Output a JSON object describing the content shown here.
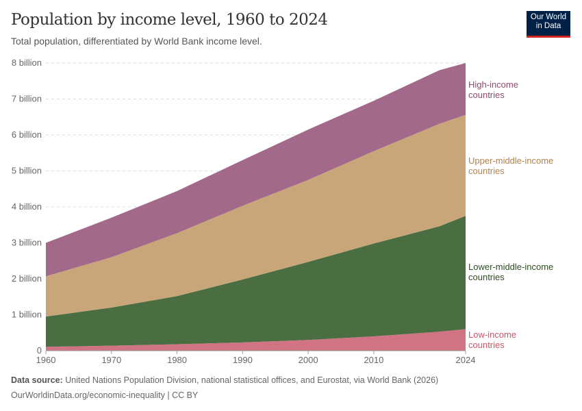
{
  "header": {
    "title": "Population by income level, 1960 to 2024",
    "subtitle": "Total population, differentiated by World Bank income level.",
    "logo": "Our World in Data"
  },
  "footer": {
    "source_label": "Data source:",
    "source": "United Nations Population Division, national statistical offices, and Eurostat, via World Bank (2026)",
    "url": "OurWorldinData.org/economic-inequality | CC BY"
  },
  "chart_data": {
    "type": "area",
    "stacked": true,
    "title": "Population by income level, 1960 to 2024",
    "subtitle": "Total population, differentiated by World Bank income level.",
    "x": [
      1960,
      1970,
      1980,
      1990,
      2000,
      2010,
      2020,
      2024
    ],
    "xticks": [
      "1960",
      "1970",
      "1980",
      "1990",
      "2000",
      "2010",
      "2024"
    ],
    "yticks": [
      "0",
      "1 billion",
      "2 billion",
      "3 billion",
      "4 billion",
      "5 billion",
      "6 billion",
      "7 billion",
      "8 billion"
    ],
    "ylim": [
      0,
      8000000000
    ],
    "grid": "horizontal dashed",
    "legend": "right, inline labels",
    "series": [
      {
        "name": "Low-income countries",
        "color": "#d07484",
        "label_color": "#c9556b",
        "values": [
          110000000.0,
          140000000.0,
          180000000.0,
          230000000.0,
          300000000.0,
          400000000.0,
          530000000.0,
          600000000.0
        ]
      },
      {
        "name": "Lower-middle-income countries",
        "color": "#4a6d41",
        "label_color": "#2d4d23",
        "values": [
          840000000.0,
          1060000000.0,
          1340000000.0,
          1750000000.0,
          2170000000.0,
          2580000000.0,
          2930000000.0,
          3150000000.0
        ]
      },
      {
        "name": "Upper-middle-income countries",
        "color": "#c8a67a",
        "label_color": "#b2834f",
        "values": [
          1120000000.0,
          1400000000.0,
          1750000000.0,
          2050000000.0,
          2280000000.0,
          2570000000.0,
          2850000000.0,
          2810000000.0
        ]
      },
      {
        "name": "High-income countries",
        "color": "#a2698a",
        "label_color": "#8f4a70",
        "values": [
          930000000.0,
          1100000000.0,
          1170000000.0,
          1270000000.0,
          1400000000.0,
          1400000000.0,
          1490000000.0,
          1440000000.0
        ]
      }
    ]
  }
}
